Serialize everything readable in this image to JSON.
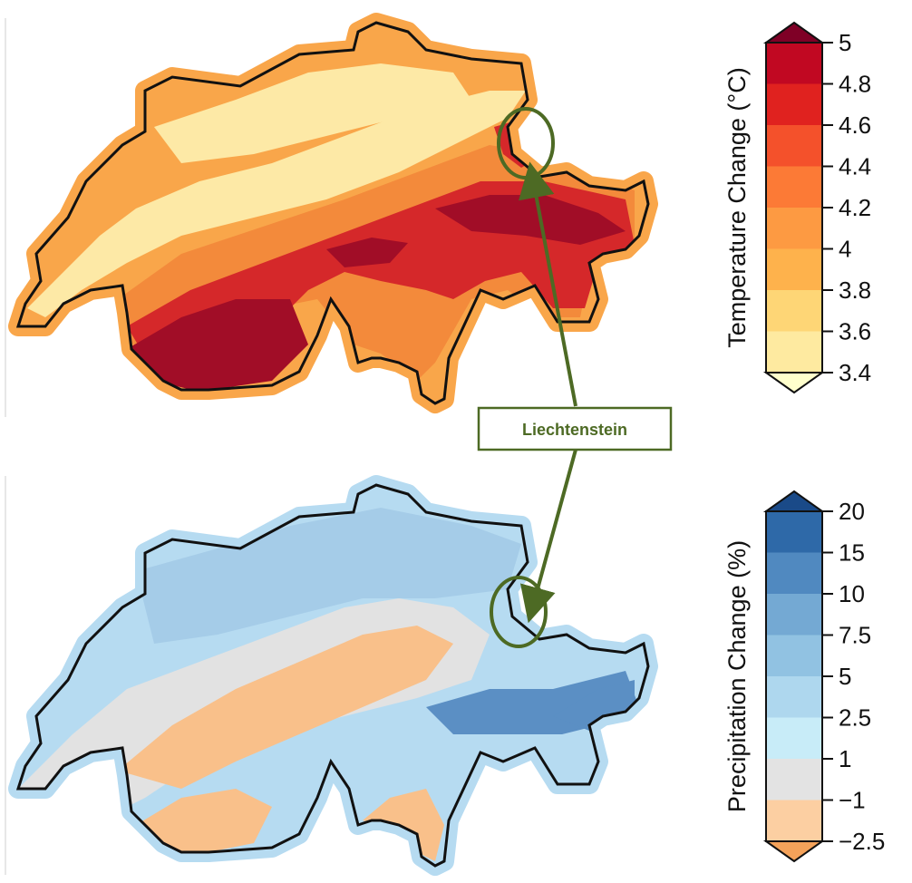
{
  "temperature_map": {
    "colorbar": {
      "title": "Temperature Change (°C)",
      "ticks": [
        "5",
        "4.8",
        "4.6",
        "4.4",
        "4.2",
        "4",
        "3.8",
        "3.6",
        "3.4"
      ],
      "colors": [
        "#ffffcc",
        "#feeaa0",
        "#fed676",
        "#feb24c",
        "#fd9a42",
        "#fc7a36",
        "#f4512b",
        "#e0221f",
        "#c10822",
        "#7f0026"
      ]
    },
    "zones": {
      "outer": "#f9a64a",
      "plateau": "#fde9a6",
      "prealps": "#f38a3b",
      "alps": "#d5282a",
      "highalps": "#a10d27",
      "outline": "#111111"
    }
  },
  "precipitation_map": {
    "colorbar": {
      "title": "Precipitation Change (%)",
      "ticks": [
        "20",
        "15",
        "10",
        "7.5",
        "5",
        "2.5",
        "1",
        "−1",
        "−2.5"
      ],
      "colors": [
        "#f4a25a",
        "#fccfa2",
        "#e3e3e3",
        "#c8ecf8",
        "#aed7ee",
        "#91c2e2",
        "#74a9d3",
        "#5089c0",
        "#2e69a8",
        "#1a4a88"
      ]
    },
    "zones": {
      "outer": "#b6dbf1",
      "plateau": "#a5cce8",
      "neutral": "#e2e2e2",
      "dry": "#f9c08a",
      "wet": "#5b8fc4",
      "outline": "#111111"
    }
  },
  "callout": {
    "label": "Liechtenstein",
    "color": "#4d6a24"
  }
}
